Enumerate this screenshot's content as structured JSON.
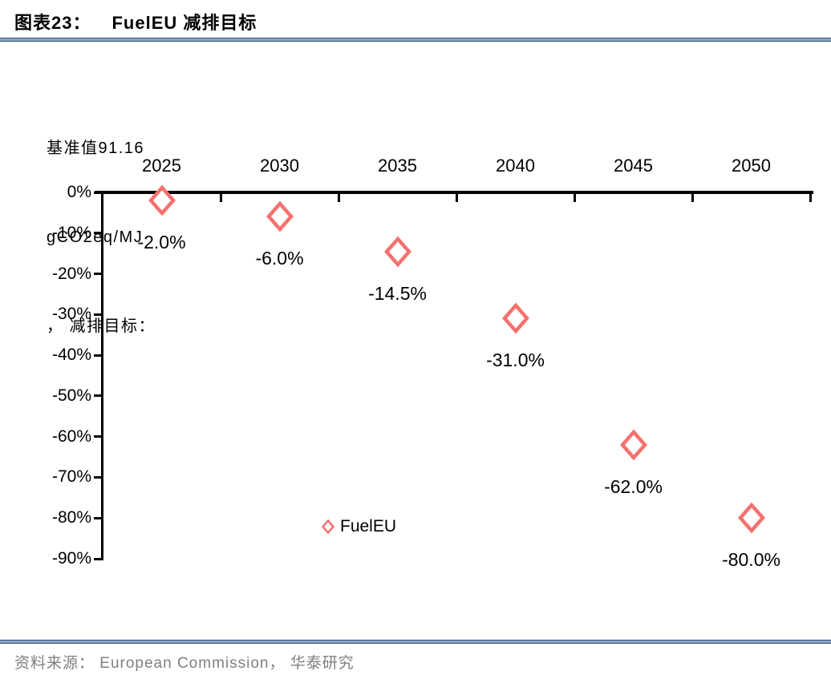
{
  "header": {
    "figure_label": "图表23：",
    "title": "FuelEU 减排目标"
  },
  "chart_data": {
    "type": "scatter",
    "title": "FuelEU 减排目标",
    "axis_note_lines": [
      "基准值91.16",
      "gCO2eq/MJ",
      "， 减排目标："
    ],
    "categories": [
      "2025",
      "2030",
      "2035",
      "2040",
      "2045",
      "2050"
    ],
    "series": [
      {
        "name": "FuelEU",
        "values": [
          -2.0,
          -6.0,
          -14.5,
          -31.0,
          -62.0,
          -80.0
        ],
        "point_labels": [
          "-2.0%",
          "-6.0%",
          "-14.5%",
          "-31.0%",
          "-62.0%",
          "-80.0%"
        ],
        "marker": "hollow-diamond",
        "marker_color": "#F4716E"
      }
    ],
    "y_tick_labels": [
      "0%",
      "-10%",
      "-20%",
      "-30%",
      "-40%",
      "-50%",
      "-60%",
      "-70%",
      "-80%",
      "-90%"
    ],
    "ylim": [
      -90,
      0
    ],
    "grid": false,
    "legend": {
      "label": "FuelEU",
      "position": "inside-bottom-center"
    }
  },
  "footer": {
    "source": "资料来源： European Commission， 华泰研究"
  },
  "colors": {
    "marker_stroke": "#F4716E",
    "rule_dark": "#33527E",
    "rule_light": "#8CA5C6",
    "source_text": "#7F7F7F",
    "axis": "#000000",
    "text": "#000000"
  }
}
